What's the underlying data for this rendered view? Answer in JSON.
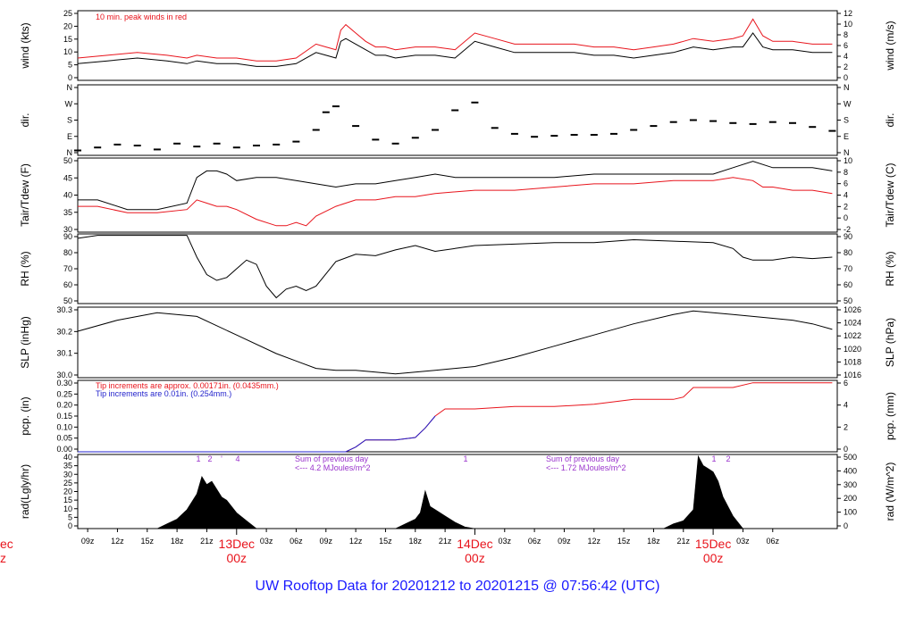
{
  "title": "UW Rooftop Data for 20201212  to  20201215 @ 07:56:42  (UTC)",
  "colors": {
    "primary": "#000000",
    "accent": "#e8141c",
    "tip": "#2222cc",
    "note": "#9933cc",
    "title": "#1a1aff"
  },
  "chart_data": {
    "type": "line",
    "x_axis": {
      "hour_ticks": [
        "09z",
        "12z",
        "15z",
        "18z",
        "21z",
        "03z",
        "06z",
        "09z",
        "12z",
        "15z",
        "18z",
        "21z",
        "03z",
        "06z",
        "09z",
        "12z",
        "15z",
        "18z",
        "21z",
        "03z",
        "06z"
      ],
      "day_labels": [
        {
          "date": "13Dec",
          "time": "00z"
        },
        {
          "date": "14Dec",
          "time": "00z"
        },
        {
          "date": "15Dec",
          "time": "00z"
        }
      ],
      "clipped_left_label": {
        "date": "ec",
        "time": "z"
      },
      "range_hours": [
        0,
        76.5
      ]
    },
    "panels": [
      {
        "id": "wind",
        "ylabel_left": "wind (kts)",
        "ylabel_right": "wind (m/s)",
        "left_ticks": [
          "0",
          "5",
          "10",
          "15",
          "20",
          "25"
        ],
        "left_range": [
          0,
          25
        ],
        "right_ticks": [
          "0",
          "2",
          "4",
          "6",
          "8",
          "10",
          "12"
        ],
        "annotation": "10 min. peak winds in red",
        "series": [
          {
            "name": "wind",
            "color": "#000000",
            "x": [
              0,
              3,
              6,
              9,
              11,
              12,
              14,
              16,
              18,
              20,
              22,
              24,
              25,
              26,
              26.5,
              27,
              28,
              29,
              30,
              31,
              32,
              34,
              36,
              38,
              40,
              42,
              44,
              46,
              48,
              50,
              52,
              54,
              56,
              58,
              60,
              62,
              64,
              66,
              67,
              68,
              69,
              70,
              72,
              74,
              76
            ],
            "y": [
              6,
              7,
              8,
              7,
              6,
              7,
              6,
              6,
              5,
              5,
              6,
              10,
              9,
              8,
              14,
              15,
              13,
              11,
              9,
              9,
              8,
              9,
              9,
              8,
              14,
              12,
              10,
              10,
              10,
              10,
              9,
              9,
              8,
              9,
              10,
              12,
              11,
              12,
              12,
              17,
              12,
              11,
              11,
              10,
              10
            ]
          },
          {
            "name": "10 min. peak winds",
            "color": "#e8141c",
            "x": [
              0,
              3,
              6,
              9,
              11,
              12,
              14,
              16,
              18,
              20,
              22,
              24,
              25,
              26,
              26.5,
              27,
              28,
              29,
              30,
              31,
              32,
              34,
              36,
              38,
              40,
              42,
              44,
              46,
              48,
              50,
              52,
              54,
              56,
              58,
              60,
              62,
              64,
              66,
              67,
              68,
              69,
              70,
              72,
              74,
              76
            ],
            "y": [
              8,
              9,
              10,
              9,
              8,
              9,
              8,
              8,
              7,
              7,
              8,
              13,
              12,
              11,
              18,
              20,
              17,
              14,
              12,
              12,
              11,
              12,
              12,
              11,
              17,
              15,
              13,
              13,
              13,
              13,
              12,
              12,
              11,
              12,
              13,
              15,
              14,
              15,
              16,
              22,
              16,
              14,
              14,
              13,
              13
            ]
          }
        ]
      },
      {
        "id": "dir",
        "ylabel_left": "dir.",
        "ylabel_right": "dir.",
        "left_ticks": [
          "N",
          "E",
          "S",
          "W",
          "N"
        ],
        "left_range": [
          0,
          360
        ],
        "right_ticks": [
          "N",
          "E",
          "S",
          "W",
          "N"
        ],
        "series": [
          {
            "name": "direction",
            "color": "#000000",
            "x": [
              0,
              2,
              4,
              6,
              8,
              10,
              12,
              14,
              16,
              18,
              20,
              22,
              24,
              25,
              26,
              28,
              30,
              32,
              34,
              36,
              38,
              40,
              42,
              44,
              46,
              48,
              50,
              52,
              54,
              56,
              58,
              60,
              62,
              64,
              66,
              68,
              70,
              72,
              74,
              76
            ],
            "y": [
              25,
              40,
              55,
              50,
              30,
              60,
              45,
              60,
              40,
              50,
              55,
              70,
              130,
              220,
              250,
              150,
              80,
              60,
              90,
              130,
              230,
              270,
              140,
              110,
              95,
              100,
              105,
              105,
              110,
              130,
              150,
              170,
              180,
              175,
              165,
              160,
              170,
              165,
              145,
              125
            ]
          }
        ]
      },
      {
        "id": "temp",
        "ylabel_left": "Tair/Tdew (F)",
        "ylabel_right": "Tair/Tdew (C)",
        "left_ticks": [
          "30",
          "35",
          "40",
          "45",
          "50"
        ],
        "left_range": [
          27,
          50
        ],
        "right_ticks": [
          "-2",
          "0",
          "2",
          "4",
          "6",
          "8",
          "10"
        ],
        "series": [
          {
            "name": "Tair",
            "color": "#000000",
            "x": [
              0,
              2,
              5,
              8,
              11,
              12,
              13,
              14,
              15,
              16,
              18,
              20,
              22,
              24,
              26,
              28,
              30,
              32,
              34,
              36,
              38,
              40,
              44,
              48,
              52,
              56,
              60,
              64,
              66,
              68,
              70,
              72,
              74,
              76
            ],
            "y": [
              37,
              37,
              34,
              34,
              36,
              44,
              46,
              46,
              45,
              43,
              44,
              44,
              43,
              42,
              41,
              42,
              42,
              43,
              44,
              45,
              44,
              44,
              44,
              44,
              45,
              45,
              45,
              45,
              47,
              49,
              47,
              47,
              47,
              46
            ]
          },
          {
            "name": "Tdew",
            "color": "#e8141c",
            "x": [
              0,
              2,
              5,
              8,
              11,
              12,
              13,
              14,
              15,
              16,
              18,
              20,
              21,
              22,
              23,
              24,
              26,
              28,
              30,
              32,
              34,
              36,
              40,
              44,
              48,
              52,
              56,
              60,
              64,
              66,
              68,
              69,
              70,
              72,
              74,
              76
            ],
            "y": [
              35,
              35,
              33,
              33,
              34,
              37,
              36,
              35,
              35,
              34,
              31,
              29,
              29,
              30,
              29,
              32,
              35,
              37,
              37,
              38,
              38,
              39,
              40,
              40,
              41,
              42,
              42,
              43,
              43,
              44,
              43,
              41,
              41,
              40,
              40,
              39
            ]
          }
        ]
      },
      {
        "id": "rh",
        "ylabel_left": "RH (%)",
        "ylabel_right": "RH (%)",
        "left_ticks": [
          "50",
          "60",
          "70",
          "80",
          "90"
        ],
        "left_range": [
          48,
          96
        ],
        "right_ticks": [
          "50",
          "60",
          "70",
          "80",
          "90"
        ],
        "series": [
          {
            "name": "RH",
            "color": "#000000",
            "x": [
              0,
              2,
              5,
              8,
              11,
              12,
              13,
              14,
              15,
              16,
              17,
              18,
              19,
              20,
              21,
              22,
              23,
              24,
              26,
              28,
              30,
              32,
              34,
              36,
              38,
              40,
              44,
              48,
              52,
              56,
              60,
              64,
              66,
              67,
              68,
              70,
              72,
              74,
              76
            ],
            "y": [
              93,
              95,
              95,
              95,
              95,
              80,
              68,
              64,
              66,
              72,
              78,
              75,
              60,
              52,
              58,
              60,
              57,
              60,
              77,
              82,
              81,
              85,
              88,
              84,
              86,
              88,
              89,
              90,
              90,
              92,
              91,
              90,
              86,
              80,
              78,
              78,
              80,
              79,
              80
            ]
          }
        ]
      },
      {
        "id": "slp",
        "ylabel_left": "SLP (inHg)",
        "ylabel_right": "SLP (hPa)",
        "left_ticks": [
          "30.0",
          "30.1",
          "30.2",
          "30.3"
        ],
        "left_range": [
          29.97,
          30.35
        ],
        "right_ticks": [
          "1016",
          "1018",
          "1020",
          "1022",
          "1024",
          "1026"
        ],
        "series": [
          {
            "name": "SLP",
            "color": "#000000",
            "x": [
              0,
              4,
              8,
              12,
              16,
              20,
              22,
              24,
              26,
              28,
              30,
              32,
              34,
              36,
              38,
              40,
              44,
              48,
              52,
              56,
              60,
              62,
              64,
              66,
              68,
              70,
              72,
              74,
              76
            ],
            "y": [
              30.22,
              30.28,
              30.32,
              30.3,
              30.2,
              30.1,
              30.06,
              30.02,
              30.01,
              30.01,
              30.0,
              29.99,
              30.0,
              30.01,
              30.02,
              30.03,
              30.08,
              30.14,
              30.2,
              30.26,
              30.31,
              30.33,
              30.32,
              30.31,
              30.3,
              30.29,
              30.28,
              30.26,
              30.23
            ]
          }
        ]
      },
      {
        "id": "pcp",
        "ylabel_left": "pcp. (in)",
        "ylabel_right": "pcp. (mm)",
        "left_ticks": [
          "0.00",
          "0.05",
          "0.10",
          "0.15",
          "0.20",
          "0.25",
          "0.30"
        ],
        "left_range": [
          0,
          0.3
        ],
        "right_ticks": [
          "0",
          "2",
          "4",
          "6"
        ],
        "annotations": [
          "Tip increments are approx. 0.00171in. (0.0435mm.)",
          "Tip increments are 0.01in. (0.254mm.)"
        ],
        "series": [
          {
            "name": "pcp fine",
            "color": "#e8141c",
            "x": [
              0,
              27,
              28,
              29,
              32,
              34,
              35,
              36,
              37,
              40,
              44,
              48,
              52,
              54,
              56,
              60,
              61,
              62,
              66,
              68,
              70,
              72,
              74,
              76
            ],
            "y": [
              0,
              0,
              0.02,
              0.05,
              0.05,
              0.06,
              0.1,
              0.15,
              0.18,
              0.18,
              0.19,
              0.19,
              0.2,
              0.21,
              0.22,
              0.22,
              0.23,
              0.27,
              0.27,
              0.29,
              0.29,
              0.29,
              0.29,
              0.29
            ]
          },
          {
            "name": "pcp tip",
            "color": "#2222cc",
            "x": [
              0,
              27,
              28,
              29,
              32,
              34,
              35,
              36
            ],
            "y": [
              0,
              0,
              0.02,
              0.05,
              0.05,
              0.06,
              0.1,
              0.15
            ]
          }
        ]
      },
      {
        "id": "rad",
        "ylabel_left": "rad(Lgly/hr)",
        "ylabel_right": "rad (W/m^2)",
        "left_ticks": [
          "0",
          "5",
          "10",
          "15",
          "20",
          "25",
          "30",
          "35",
          "40"
        ],
        "left_range": [
          0,
          47
        ],
        "right_ticks": [
          "0",
          "100",
          "200",
          "300",
          "400",
          "500"
        ],
        "top_markers": [
          "1",
          "2",
          "'",
          "4",
          "1",
          "1",
          "2"
        ],
        "daily_sums": [
          {
            "line1": "Sum of previous day",
            "line2": "<--- 4.2 MJoules/m^2"
          },
          {
            "line1": "Sum of previous day",
            "line2": "<--- 1.72 MJoules/m^2"
          }
        ],
        "series": [
          {
            "name": "radiation",
            "color": "#000000",
            "x": [
              8,
              9,
              10,
              11,
              12,
              12.5,
              13,
              13.5,
              14,
              14.5,
              15,
              16,
              17,
              18,
              32,
              33,
              34,
              34.5,
              35,
              35.5,
              36,
              37,
              38,
              39,
              40,
              59,
              60,
              61,
              62,
              62.5,
              63,
              63.5,
              64,
              64.5,
              65,
              66,
              67
            ],
            "y": [
              0,
              3,
              6,
              12,
              22,
              33,
              28,
              30,
              25,
              20,
              18,
              10,
              5,
              0,
              0,
              3,
              6,
              10,
              24,
              14,
              12,
              8,
              4,
              1,
              0,
              0,
              3,
              5,
              12,
              46,
              40,
              38,
              36,
              30,
              20,
              8,
              0
            ]
          }
        ]
      }
    ]
  }
}
